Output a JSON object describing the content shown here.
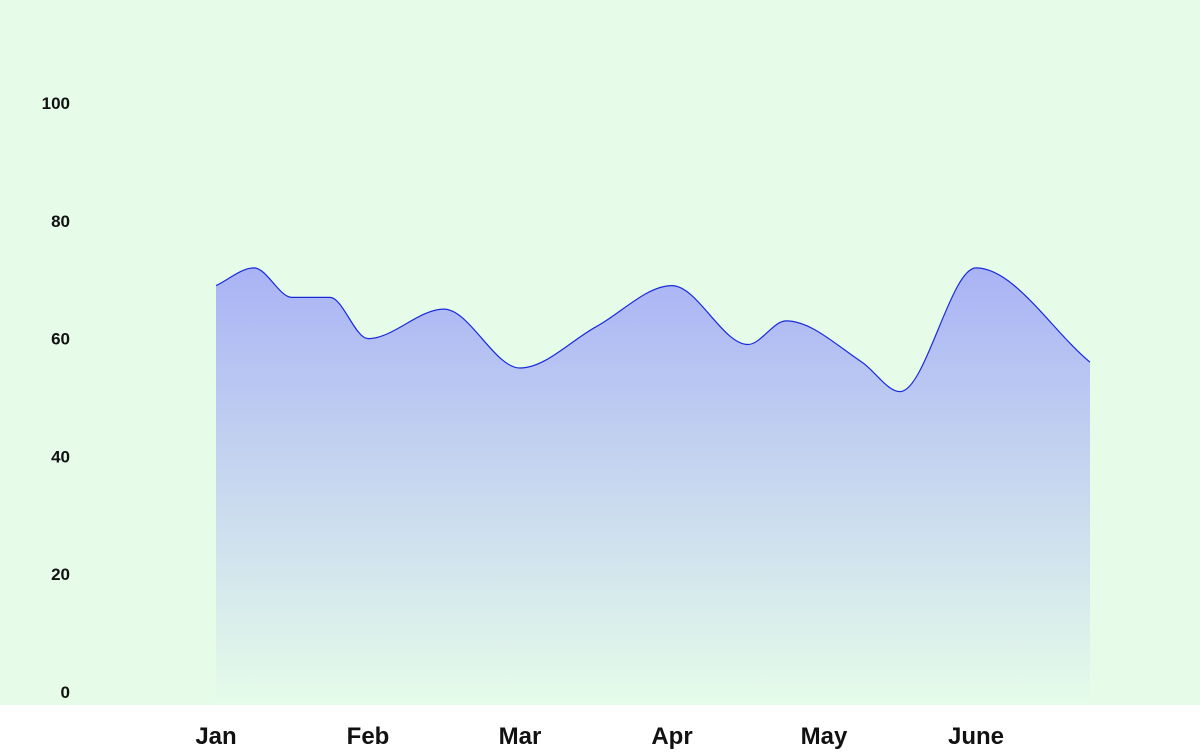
{
  "colors": {
    "plot_background": "#e6fce9",
    "axis_strip_background": "#ffffff",
    "area_fill_top": "#aab3f5",
    "area_fill_bottom": "#e6fce9",
    "line_stroke": "#1a2bdc"
  },
  "chart_data": {
    "type": "area",
    "title": "",
    "xlabel": "",
    "ylabel": "",
    "ylim": [
      0,
      100
    ],
    "y_ticks": [
      "0",
      "20",
      "40",
      "60",
      "80",
      "100"
    ],
    "categories": [
      "Jan",
      "Feb",
      "Mar",
      "Apr",
      "May",
      "June"
    ],
    "grid": false,
    "legend": "none",
    "series": [
      {
        "points": [
          {
            "x": 0.0,
            "y": 69
          },
          {
            "x": 0.25,
            "y": 72
          },
          {
            "x": 0.5,
            "y": 67
          },
          {
            "x": 0.75,
            "y": 67
          },
          {
            "x": 1.0,
            "y": 60
          },
          {
            "x": 1.5,
            "y": 65
          },
          {
            "x": 2.0,
            "y": 55
          },
          {
            "x": 2.5,
            "y": 62
          },
          {
            "x": 3.0,
            "y": 69
          },
          {
            "x": 3.5,
            "y": 59
          },
          {
            "x": 3.75,
            "y": 63
          },
          {
            "x": 4.25,
            "y": 56
          },
          {
            "x": 4.5,
            "y": 51
          },
          {
            "x": 5.0,
            "y": 72
          },
          {
            "x": 5.75,
            "y": 56
          }
        ]
      }
    ]
  }
}
